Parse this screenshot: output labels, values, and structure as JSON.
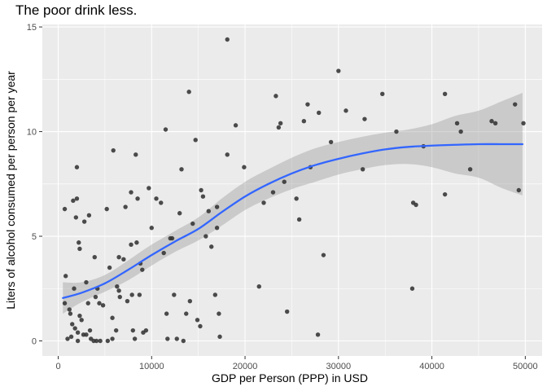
{
  "chart_data": {
    "type": "scatter",
    "title": "The poor drink less.",
    "xlabel": "GDP per Person (PPP) in USD",
    "ylabel": "Liters of alcohol consumed per person per year",
    "xlim": [
      -1700,
      51800
    ],
    "ylim": [
      -0.72,
      15.12
    ],
    "x_ticks": [
      0,
      10000,
      20000,
      30000,
      40000,
      50000
    ],
    "x_tick_labels": [
      "0",
      "10000",
      "20000",
      "30000",
      "40000",
      "50000"
    ],
    "y_ticks": [
      0,
      5,
      10,
      15
    ],
    "y_tick_labels": [
      "0",
      "5",
      "10",
      "15"
    ],
    "grid": true,
    "colors": {
      "panel_background": "#ebebeb",
      "grid": "#ffffff",
      "points": "#333333",
      "smooth_line": "#3366ff",
      "confidence_band": "#999999"
    },
    "points": [
      {
        "x": 700,
        "y": 6.3
      },
      {
        "x": 800,
        "y": 3.1
      },
      {
        "x": 700,
        "y": 1.8
      },
      {
        "x": 1000,
        "y": 0.1
      },
      {
        "x": 1200,
        "y": 1.5
      },
      {
        "x": 1300,
        "y": 1.3
      },
      {
        "x": 1400,
        "y": 0.2
      },
      {
        "x": 1500,
        "y": 0.8
      },
      {
        "x": 1600,
        "y": 6.7
      },
      {
        "x": 1700,
        "y": 2.5
      },
      {
        "x": 1800,
        "y": 0.6
      },
      {
        "x": 1900,
        "y": 5.9
      },
      {
        "x": 2000,
        "y": 8.3
      },
      {
        "x": 2000,
        "y": 6.8
      },
      {
        "x": 2100,
        "y": 0.4
      },
      {
        "x": 2100,
        "y": 0.0
      },
      {
        "x": 2200,
        "y": 4.7
      },
      {
        "x": 2300,
        "y": 4.4
      },
      {
        "x": 2300,
        "y": 1.2
      },
      {
        "x": 2500,
        "y": 1.0
      },
      {
        "x": 2700,
        "y": 0.3
      },
      {
        "x": 2800,
        "y": 5.7
      },
      {
        "x": 3000,
        "y": 0.3
      },
      {
        "x": 3000,
        "y": 2.8
      },
      {
        "x": 3200,
        "y": 1.8
      },
      {
        "x": 3300,
        "y": 6.0
      },
      {
        "x": 3400,
        "y": 0.5
      },
      {
        "x": 3500,
        "y": 0.1
      },
      {
        "x": 3800,
        "y": 0.0
      },
      {
        "x": 3900,
        "y": 4.0
      },
      {
        "x": 4000,
        "y": 2.1
      },
      {
        "x": 4100,
        "y": 0.0
      },
      {
        "x": 4200,
        "y": 2.5
      },
      {
        "x": 4400,
        "y": 1.8
      },
      {
        "x": 4500,
        "y": 0.0
      },
      {
        "x": 4800,
        "y": 1.7
      },
      {
        "x": 5200,
        "y": 6.3
      },
      {
        "x": 5300,
        "y": 0.0
      },
      {
        "x": 5500,
        "y": 3.5
      },
      {
        "x": 5800,
        "y": 0.1
      },
      {
        "x": 5800,
        "y": 1.1
      },
      {
        "x": 5900,
        "y": 9.1
      },
      {
        "x": 6200,
        "y": 0.5
      },
      {
        "x": 6300,
        "y": 2.6
      },
      {
        "x": 6500,
        "y": 4.0
      },
      {
        "x": 6500,
        "y": 2.4
      },
      {
        "x": 6600,
        "y": 2.1
      },
      {
        "x": 7000,
        "y": 3.9
      },
      {
        "x": 7200,
        "y": 6.4
      },
      {
        "x": 7400,
        "y": 1.9
      },
      {
        "x": 7800,
        "y": 7.1
      },
      {
        "x": 7800,
        "y": 4.6
      },
      {
        "x": 7900,
        "y": 2.2
      },
      {
        "x": 8000,
        "y": 0.5
      },
      {
        "x": 8200,
        "y": 0.1
      },
      {
        "x": 8300,
        "y": 8.9
      },
      {
        "x": 8400,
        "y": 4.7
      },
      {
        "x": 8500,
        "y": 6.8
      },
      {
        "x": 8700,
        "y": 2.2
      },
      {
        "x": 8800,
        "y": 3.7
      },
      {
        "x": 9000,
        "y": 3.4
      },
      {
        "x": 9100,
        "y": 0.4
      },
      {
        "x": 9400,
        "y": 0.5
      },
      {
        "x": 9700,
        "y": 7.3
      },
      {
        "x": 10000,
        "y": 5.4
      },
      {
        "x": 10500,
        "y": 6.8
      },
      {
        "x": 11000,
        "y": 6.6
      },
      {
        "x": 11300,
        "y": 4.2
      },
      {
        "x": 11500,
        "y": 10.1
      },
      {
        "x": 11600,
        "y": 1.3
      },
      {
        "x": 11700,
        "y": 0.1
      },
      {
        "x": 12000,
        "y": 4.9
      },
      {
        "x": 12200,
        "y": 4.9
      },
      {
        "x": 12400,
        "y": 2.2
      },
      {
        "x": 12700,
        "y": 0.1
      },
      {
        "x": 13000,
        "y": 6.1
      },
      {
        "x": 13200,
        "y": 8.2
      },
      {
        "x": 13400,
        "y": 0.0
      },
      {
        "x": 13700,
        "y": 1.3
      },
      {
        "x": 14000,
        "y": 11.9
      },
      {
        "x": 14100,
        "y": 1.9
      },
      {
        "x": 14400,
        "y": 5.6
      },
      {
        "x": 14700,
        "y": 9.6
      },
      {
        "x": 14900,
        "y": 1.0
      },
      {
        "x": 15200,
        "y": 0.7
      },
      {
        "x": 15300,
        "y": 7.2
      },
      {
        "x": 15500,
        "y": 6.9
      },
      {
        "x": 15800,
        "y": 5.0
      },
      {
        "x": 16100,
        "y": 6.2
      },
      {
        "x": 16400,
        "y": 4.5
      },
      {
        "x": 16800,
        "y": 2.2
      },
      {
        "x": 17000,
        "y": 6.4
      },
      {
        "x": 17000,
        "y": 5.4
      },
      {
        "x": 17200,
        "y": 1.3
      },
      {
        "x": 17300,
        "y": 0.2
      },
      {
        "x": 18100,
        "y": 8.9
      },
      {
        "x": 18100,
        "y": 14.4
      },
      {
        "x": 19000,
        "y": 10.3
      },
      {
        "x": 19900,
        "y": 8.3
      },
      {
        "x": 21500,
        "y": 2.6
      },
      {
        "x": 22000,
        "y": 6.6
      },
      {
        "x": 23000,
        "y": 7.1
      },
      {
        "x": 23300,
        "y": 11.7
      },
      {
        "x": 23600,
        "y": 10.2
      },
      {
        "x": 23800,
        "y": 10.4
      },
      {
        "x": 24200,
        "y": 7.6
      },
      {
        "x": 24500,
        "y": 1.4
      },
      {
        "x": 25500,
        "y": 6.8
      },
      {
        "x": 25800,
        "y": 5.8
      },
      {
        "x": 26300,
        "y": 10.5
      },
      {
        "x": 26700,
        "y": 11.3
      },
      {
        "x": 27000,
        "y": 8.3
      },
      {
        "x": 27800,
        "y": 0.3
      },
      {
        "x": 27900,
        "y": 10.9
      },
      {
        "x": 28400,
        "y": 4.1
      },
      {
        "x": 29200,
        "y": 9.5
      },
      {
        "x": 30000,
        "y": 12.9
      },
      {
        "x": 30800,
        "y": 11.0
      },
      {
        "x": 32600,
        "y": 8.2
      },
      {
        "x": 32800,
        "y": 10.6
      },
      {
        "x": 34700,
        "y": 11.8
      },
      {
        "x": 36200,
        "y": 10.0
      },
      {
        "x": 37900,
        "y": 2.5
      },
      {
        "x": 38000,
        "y": 6.6
      },
      {
        "x": 38300,
        "y": 6.5
      },
      {
        "x": 39100,
        "y": 9.3
      },
      {
        "x": 41400,
        "y": 11.8
      },
      {
        "x": 41400,
        "y": 7.0
      },
      {
        "x": 42700,
        "y": 10.4
      },
      {
        "x": 43100,
        "y": 10.0
      },
      {
        "x": 44100,
        "y": 8.2
      },
      {
        "x": 46400,
        "y": 10.5
      },
      {
        "x": 46800,
        "y": 10.4
      },
      {
        "x": 48900,
        "y": 11.3
      },
      {
        "x": 49300,
        "y": 7.2
      },
      {
        "x": 49800,
        "y": 10.4
      }
    ],
    "smooth": [
      {
        "x": 500,
        "y": 2.05,
        "lo": 1.3,
        "hi": 2.8
      },
      {
        "x": 2500,
        "y": 2.3,
        "lo": 1.85,
        "hi": 2.8
      },
      {
        "x": 5000,
        "y": 2.75,
        "lo": 2.35,
        "hi": 3.15
      },
      {
        "x": 7500,
        "y": 3.4,
        "lo": 2.9,
        "hi": 3.85
      },
      {
        "x": 10000,
        "y": 4.1,
        "lo": 3.6,
        "hi": 4.6
      },
      {
        "x": 12500,
        "y": 4.75,
        "lo": 4.25,
        "hi": 5.25
      },
      {
        "x": 15000,
        "y": 5.35,
        "lo": 4.8,
        "hi": 5.9
      },
      {
        "x": 17500,
        "y": 6.15,
        "lo": 5.5,
        "hi": 6.8
      },
      {
        "x": 20000,
        "y": 6.9,
        "lo": 6.25,
        "hi": 7.6
      },
      {
        "x": 22500,
        "y": 7.5,
        "lo": 6.8,
        "hi": 8.2
      },
      {
        "x": 25000,
        "y": 8.0,
        "lo": 7.25,
        "hi": 8.75
      },
      {
        "x": 27500,
        "y": 8.4,
        "lo": 7.6,
        "hi": 9.2
      },
      {
        "x": 30000,
        "y": 8.7,
        "lo": 7.95,
        "hi": 9.5
      },
      {
        "x": 32500,
        "y": 8.95,
        "lo": 8.2,
        "hi": 9.75
      },
      {
        "x": 35000,
        "y": 9.15,
        "lo": 8.4,
        "hi": 9.95
      },
      {
        "x": 37500,
        "y": 9.27,
        "lo": 8.45,
        "hi": 10.1
      },
      {
        "x": 40000,
        "y": 9.33,
        "lo": 8.3,
        "hi": 10.35
      },
      {
        "x": 42500,
        "y": 9.37,
        "lo": 8.0,
        "hi": 10.75
      },
      {
        "x": 45000,
        "y": 9.4,
        "lo": 7.8,
        "hi": 11.0
      },
      {
        "x": 47500,
        "y": 9.4,
        "lo": 7.3,
        "hi": 11.45
      },
      {
        "x": 49700,
        "y": 9.4,
        "lo": 6.95,
        "hi": 11.85
      }
    ]
  }
}
